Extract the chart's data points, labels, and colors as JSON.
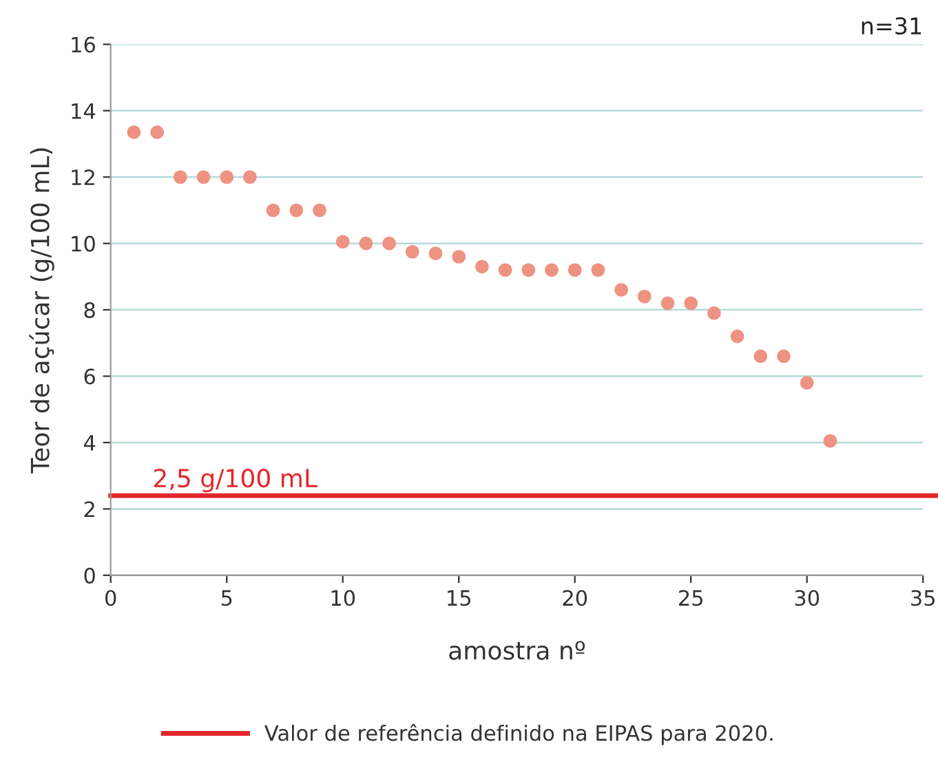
{
  "chart_data": {
    "type": "scatter",
    "xlabel": "amostra nº",
    "ylabel": "Teor de açúcar (g/100 mL)",
    "x": [
      1,
      2,
      3,
      4,
      5,
      6,
      7,
      8,
      9,
      10,
      11,
      12,
      13,
      14,
      15,
      16,
      17,
      18,
      19,
      20,
      21,
      22,
      23,
      24,
      25,
      26,
      27,
      28,
      29,
      30,
      31
    ],
    "series": [
      {
        "color": "#ee9282",
        "values": [
          13.35,
          13.35,
          12,
          12,
          12,
          12,
          11,
          11,
          11,
          10.05,
          10,
          10,
          9.75,
          9.7,
          9.6,
          9.3,
          9.2,
          9.2,
          9.2,
          9.2,
          9.2,
          8.6,
          8.4,
          8.2,
          8.2,
          7.9,
          7.2,
          6.6,
          6.6,
          5.8,
          4.05
        ]
      }
    ],
    "marker": "circle",
    "xlim": [
      0,
      35
    ],
    "xticks": [
      0,
      5,
      10,
      15,
      20,
      25,
      30,
      35
    ],
    "ylim": [
      0,
      16
    ],
    "yticks": [
      0,
      2,
      4,
      6,
      8,
      10,
      12,
      14,
      16
    ],
    "grid": "y",
    "ref_lines": [
      {
        "axis": "y",
        "value": 2.4,
        "label": "Valor de referência definido na EIPAS para 2020.",
        "color": "#e3262b",
        "line_style": "solid"
      }
    ],
    "annotations": [
      {
        "text": "2,5 g/100 mL",
        "x": 1.8,
        "y": 2.5
      },
      "n=31"
    ],
    "legend": "bottom"
  }
}
